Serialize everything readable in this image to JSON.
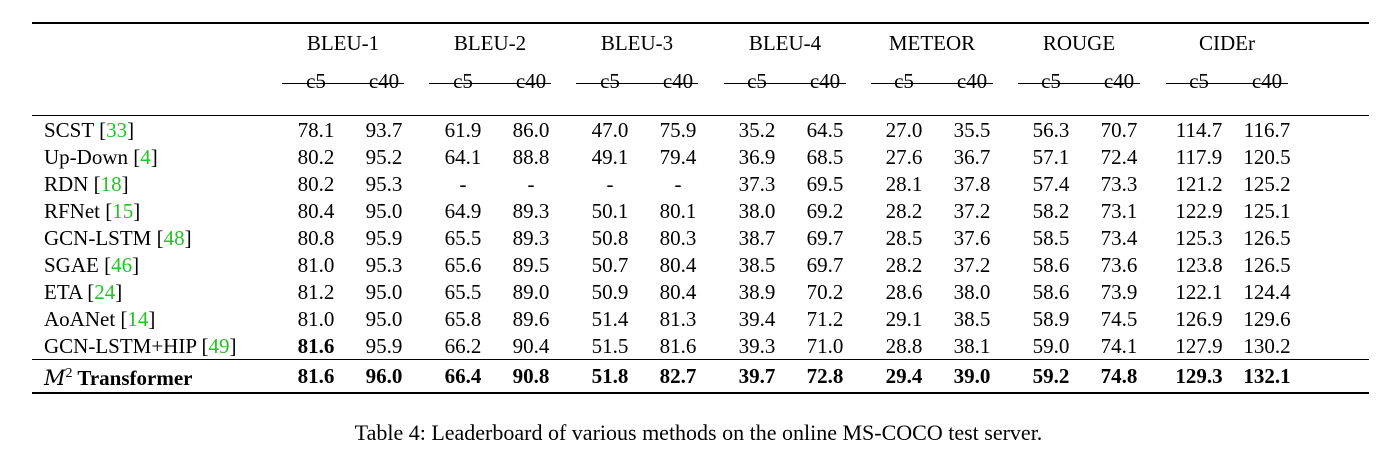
{
  "groups": [
    "BLEU-1",
    "BLEU-2",
    "BLEU-3",
    "BLEU-4",
    "METEOR",
    "ROUGE",
    "CIDEr"
  ],
  "sub": [
    "c5",
    "c40"
  ],
  "rows": [
    {
      "name": "SCST",
      "cite": "33",
      "v": [
        "78.1",
        "93.7",
        "61.9",
        "86.0",
        "47.0",
        "75.9",
        "35.2",
        "64.5",
        "27.0",
        "35.5",
        "56.3",
        "70.7",
        "114.7",
        "116.7"
      ]
    },
    {
      "name": "Up-Down",
      "cite": "4",
      "v": [
        "80.2",
        "95.2",
        "64.1",
        "88.8",
        "49.1",
        "79.4",
        "36.9",
        "68.5",
        "27.6",
        "36.7",
        "57.1",
        "72.4",
        "117.9",
        "120.5"
      ]
    },
    {
      "name": "RDN",
      "cite": "18",
      "v": [
        "80.2",
        "95.3",
        "-",
        "-",
        "-",
        "-",
        "37.3",
        "69.5",
        "28.1",
        "37.8",
        "57.4",
        "73.3",
        "121.2",
        "125.2"
      ]
    },
    {
      "name": "RFNet",
      "cite": "15",
      "v": [
        "80.4",
        "95.0",
        "64.9",
        "89.3",
        "50.1",
        "80.1",
        "38.0",
        "69.2",
        "28.2",
        "37.2",
        "58.2",
        "73.1",
        "122.9",
        "125.1"
      ]
    },
    {
      "name": "GCN-LSTM",
      "cite": "48",
      "v": [
        "80.8",
        "95.9",
        "65.5",
        "89.3",
        "50.8",
        "80.3",
        "38.7",
        "69.7",
        "28.5",
        "37.6",
        "58.5",
        "73.4",
        "125.3",
        "126.5"
      ]
    },
    {
      "name": "SGAE",
      "cite": "46",
      "v": [
        "81.0",
        "95.3",
        "65.6",
        "89.5",
        "50.7",
        "80.4",
        "38.5",
        "69.7",
        "28.2",
        "37.2",
        "58.6",
        "73.6",
        "123.8",
        "126.5"
      ]
    },
    {
      "name": "ETA",
      "cite": "24",
      "v": [
        "81.2",
        "95.0",
        "65.5",
        "89.0",
        "50.9",
        "80.4",
        "38.9",
        "70.2",
        "28.6",
        "38.0",
        "58.6",
        "73.9",
        "122.1",
        "124.4"
      ]
    },
    {
      "name": "AoANet",
      "cite": "14",
      "v": [
        "81.0",
        "95.0",
        "65.8",
        "89.6",
        "51.4",
        "81.3",
        "39.4",
        "71.2",
        "29.1",
        "38.5",
        "58.9",
        "74.5",
        "126.9",
        "129.6"
      ]
    },
    {
      "name": "GCN-LSTM+HIP",
      "cite": "49",
      "v": [
        "81.6",
        "95.9",
        "66.2",
        "90.4",
        "51.5",
        "81.6",
        "39.3",
        "71.0",
        "28.8",
        "38.1",
        "59.0",
        "74.1",
        "127.9",
        "130.2"
      ]
    }
  ],
  "final": {
    "symbol": "M",
    "sup": "2",
    "name": "Transformer",
    "v": [
      "81.6",
      "96.0",
      "66.4",
      "90.8",
      "51.8",
      "82.7",
      "39.7",
      "72.8",
      "29.4",
      "39.0",
      "59.2",
      "74.8",
      "129.3",
      "132.1"
    ]
  },
  "caption": "Table 4: Leaderboard of various methods on the online MS-COCO test server."
}
